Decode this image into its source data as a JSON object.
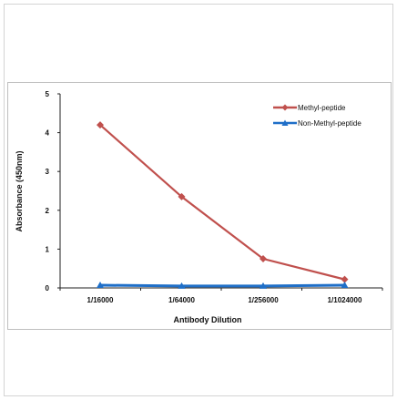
{
  "chart_data": {
    "type": "line",
    "categories": [
      "1/16000",
      "1/64000",
      "1/256000",
      "1/1024000"
    ],
    "series": [
      {
        "name": "Methyl-peptide",
        "values": [
          4.2,
          2.35,
          0.75,
          0.22
        ],
        "color": "#c0504d",
        "marker": "diamond"
      },
      {
        "name": "Non-Methyl-peptide",
        "values": [
          0.07,
          0.05,
          0.05,
          0.07
        ],
        "color": "#1f6fc8",
        "marker": "triangle"
      }
    ],
    "title": "",
    "xlabel": "Antibody Dilution",
    "ylabel": "Absorbance (450nm)",
    "ylim": [
      0,
      5
    ],
    "yticks": [
      "0",
      "1",
      "2",
      "3",
      "4",
      "5"
    ],
    "legend_position": "top-right",
    "grid": false
  }
}
